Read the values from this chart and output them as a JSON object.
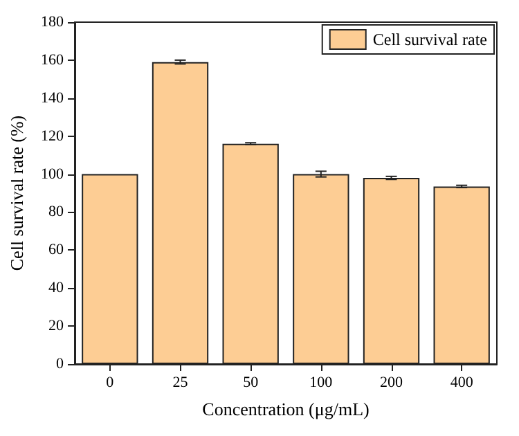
{
  "chart_data": {
    "type": "bar",
    "xlabel": "Concentration (μg/mL)",
    "ylabel": "Cell survival rate (%)",
    "categories": [
      "0",
      "25",
      "50",
      "100",
      "200",
      "400"
    ],
    "series": [
      {
        "name": "Cell survival rate",
        "color": "#fdcd94",
        "values": [
          100,
          159,
          116,
          100,
          98,
          93.5
        ],
        "errors": [
          null,
          1,
          0.5,
          1.5,
          0.8,
          0.6
        ]
      }
    ],
    "ylim": [
      0,
      180
    ],
    "yticks": [
      0,
      20,
      40,
      60,
      80,
      100,
      120,
      140,
      160,
      180
    ],
    "legend": "top right",
    "grid": false
  }
}
